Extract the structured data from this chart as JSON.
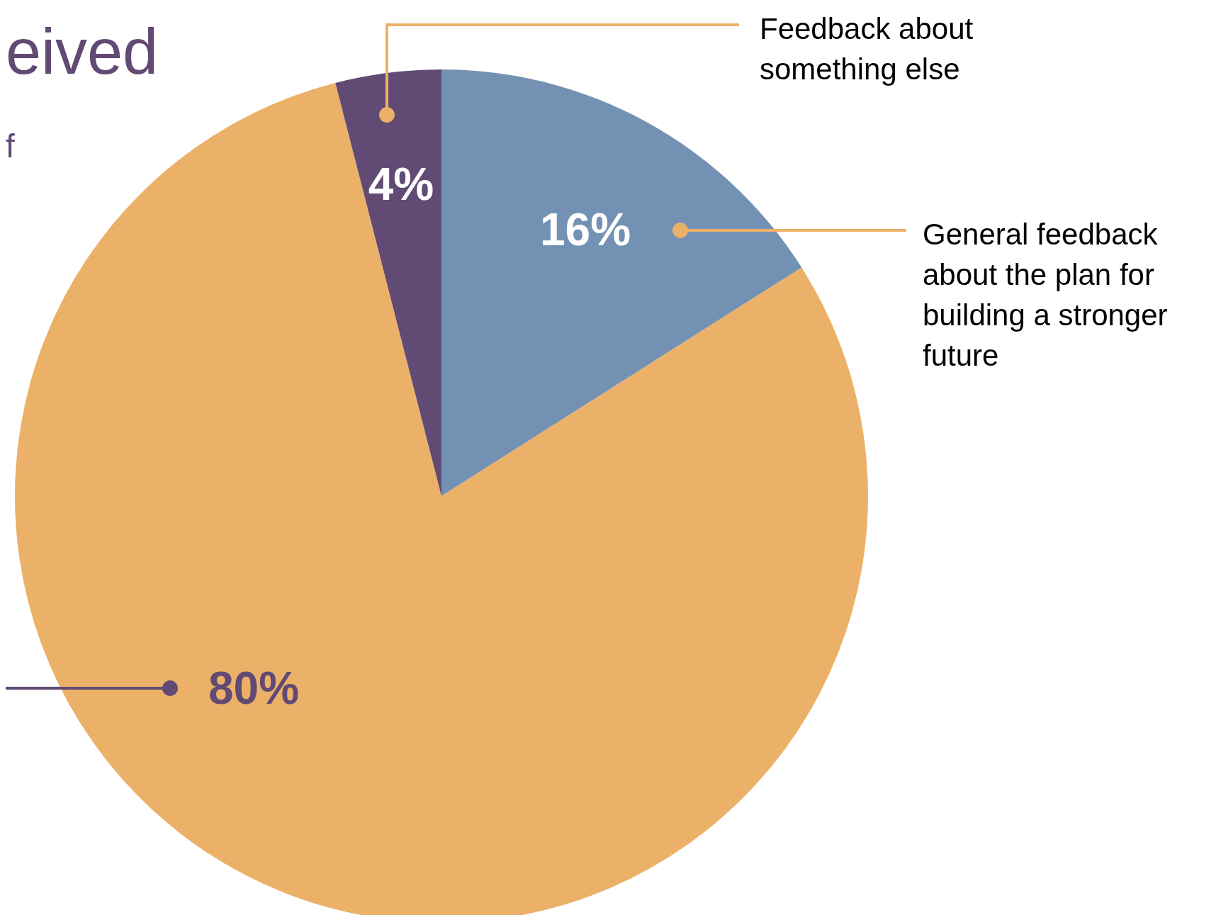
{
  "chart_data": {
    "type": "pie",
    "title": "eived",
    "subtitle": "f",
    "categories": [
      "General feedback about the plan for building a stronger future",
      null,
      "Feedback about something else"
    ],
    "values": [
      16,
      80,
      4
    ],
    "colors": [
      "#7391b3",
      "#ecb168",
      "#614a74"
    ],
    "value_labels": [
      "16%",
      "80%",
      "4%"
    ]
  }
}
